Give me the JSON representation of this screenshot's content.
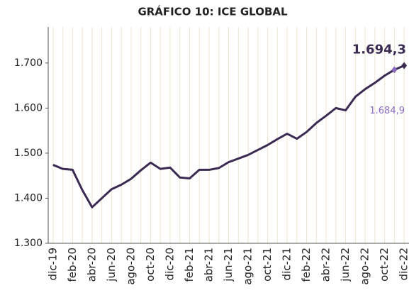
{
  "chart_data": {
    "type": "line",
    "title": "GRÁFICO 10: ICE GLOBAL",
    "categories": [
      "dic-19",
      null,
      "feb-20",
      null,
      "abr-20",
      null,
      "jun-20",
      null,
      "ago-20",
      null,
      "oct-20",
      null,
      "dic-20",
      null,
      "feb-21",
      null,
      "abr-21",
      null,
      "jun-21",
      null,
      "ago-21",
      null,
      "oct-21",
      null,
      "dic-21",
      null,
      "feb-22",
      null,
      "abr-22",
      null,
      "jun-22",
      null,
      "ago-22",
      null,
      "oct-22",
      null,
      "dic-22"
    ],
    "series": [
      {
        "name": "ICE Global",
        "color": "#3b2a52",
        "values": [
          1474,
          1465,
          1463,
          1418,
          1380,
          1400,
          1420,
          1430,
          1443,
          1462,
          1479,
          1465,
          1468,
          1446,
          1444,
          1463,
          1463,
          1467,
          1480,
          1488,
          1496,
          1507,
          1518,
          1531,
          1543,
          1532,
          1547,
          1567,
          1583,
          1600,
          1595,
          1625,
          1642,
          1656,
          1672,
          1684.9,
          1694.3
        ],
        "value_labels": [
          null,
          null,
          null,
          null,
          null,
          null,
          null,
          null,
          null,
          null,
          null,
          null,
          null,
          null,
          null,
          null,
          null,
          null,
          null,
          null,
          null,
          null,
          null,
          null,
          null,
          null,
          null,
          null,
          null,
          null,
          null,
          null,
          null,
          null,
          null,
          "1.684,9",
          "1.694,3"
        ]
      }
    ],
    "ylim": [
      1300,
      1780
    ],
    "yticks": [
      {
        "value": 1300,
        "label": "1.300"
      },
      {
        "value": 1400,
        "label": "1.400"
      },
      {
        "value": 1500,
        "label": "1.500"
      },
      {
        "value": 1600,
        "label": "1.600"
      },
      {
        "value": 1700,
        "label": "1.700"
      }
    ],
    "grid": true
  }
}
